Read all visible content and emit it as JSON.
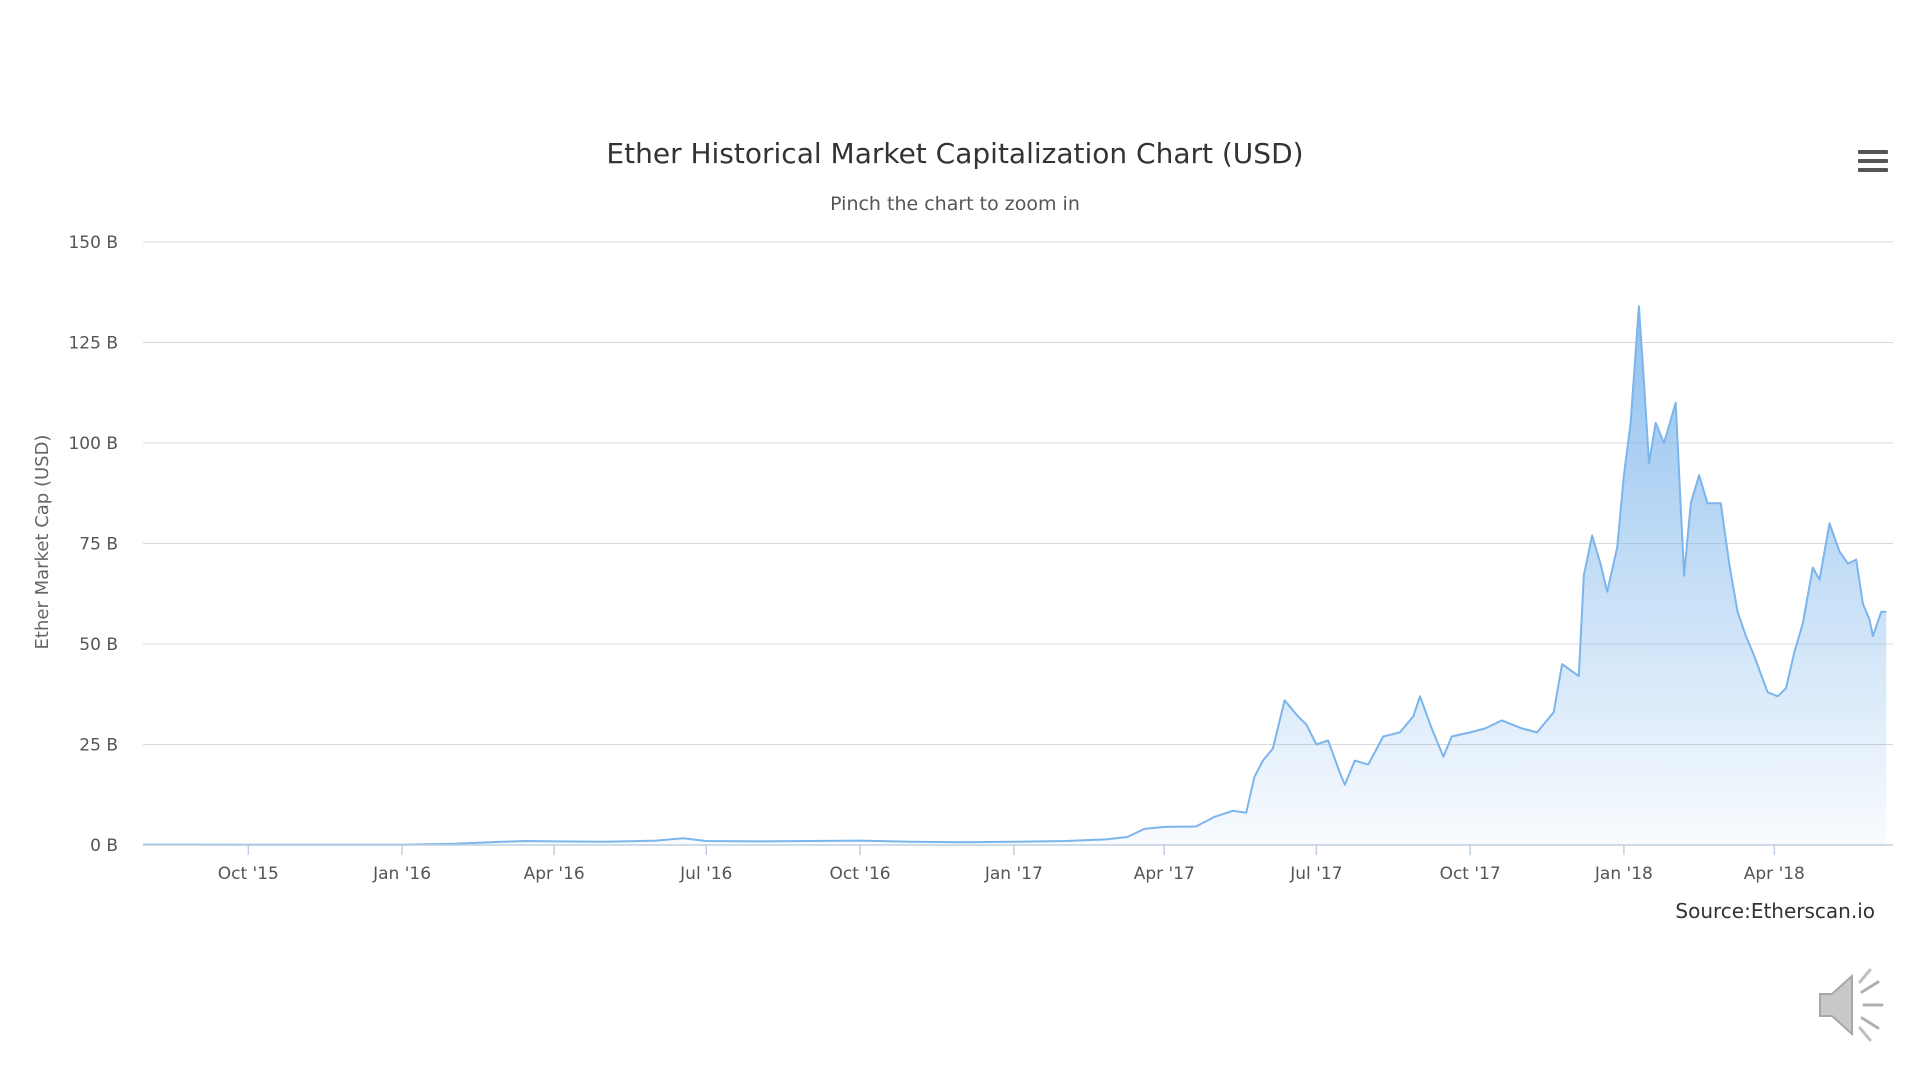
{
  "chart": {
    "title": "Ether Historical Market Capitalization Chart (USD)",
    "subtitle": "Pinch the chart to zoom in",
    "credits": "Source:Etherscan.io",
    "menu_icon": "hamburger-menu-icon",
    "sound_icon": "speaker-icon"
  },
  "chart_data": {
    "type": "area",
    "title": "Ether Historical Market Capitalization Chart (USD)",
    "subtitle": "Pinch the chart to zoom in",
    "xlabel": "",
    "ylabel": "Ether Market Cap (USD)",
    "ylim": [
      0,
      150
    ],
    "y_unit": "B",
    "y_ticks": [
      0,
      25,
      50,
      75,
      100,
      125,
      150
    ],
    "y_tick_labels": [
      "0 B",
      "25 B",
      "50 B",
      "75 B",
      "100 B",
      "125 B",
      "150 B"
    ],
    "x_range": [
      "2015-07-30",
      "2018-06-11"
    ],
    "x_ticks": [
      "2015-10-01",
      "2016-01-01",
      "2016-04-01",
      "2016-07-01",
      "2016-10-01",
      "2017-01-01",
      "2017-04-01",
      "2017-07-01",
      "2017-10-01",
      "2018-01-01",
      "2018-04-01"
    ],
    "x_tick_labels": [
      "Oct '15",
      "Jan '16",
      "Apr '16",
      "Jul '16",
      "Oct '16",
      "Jan '17",
      "Apr '17",
      "Jul '17",
      "Oct '17",
      "Jan '18",
      "Apr '18"
    ],
    "grid": true,
    "legend": "none",
    "colors": {
      "line": "#7cb5ec",
      "fill_top": "#7cb5ec",
      "fill_bottom": "#ffffff"
    },
    "series": [
      {
        "values": [
          [
            "2015-07-30",
            0.1
          ],
          [
            "2015-09-01",
            0.1
          ],
          [
            "2015-10-01",
            0.07
          ],
          [
            "2015-11-01",
            0.07
          ],
          [
            "2015-12-01",
            0.06
          ],
          [
            "2016-01-01",
            0.07
          ],
          [
            "2016-02-01",
            0.3
          ],
          [
            "2016-03-01",
            0.8
          ],
          [
            "2016-03-15",
            1.0
          ],
          [
            "2016-04-01",
            0.9
          ],
          [
            "2016-05-01",
            0.8
          ],
          [
            "2016-06-01",
            1.1
          ],
          [
            "2016-06-17",
            1.7
          ],
          [
            "2016-07-01",
            1.0
          ],
          [
            "2016-08-01",
            0.9
          ],
          [
            "2016-09-01",
            1.0
          ],
          [
            "2016-10-01",
            1.1
          ],
          [
            "2016-11-01",
            0.8
          ],
          [
            "2016-12-01",
            0.7
          ],
          [
            "2017-01-01",
            0.8
          ],
          [
            "2017-02-01",
            1.0
          ],
          [
            "2017-02-25",
            1.4
          ],
          [
            "2017-03-10",
            2.0
          ],
          [
            "2017-03-20",
            4.0
          ],
          [
            "2017-04-01",
            4.5
          ],
          [
            "2017-04-20",
            4.6
          ],
          [
            "2017-05-01",
            7.0
          ],
          [
            "2017-05-12",
            8.5
          ],
          [
            "2017-05-20",
            8.0
          ],
          [
            "2017-05-25",
            17.0
          ],
          [
            "2017-05-30",
            21.0
          ],
          [
            "2017-06-05",
            24.0
          ],
          [
            "2017-06-12",
            36.0
          ],
          [
            "2017-06-20",
            32.0
          ],
          [
            "2017-06-25",
            30.0
          ],
          [
            "2017-07-01",
            25.0
          ],
          [
            "2017-07-08",
            26.0
          ],
          [
            "2017-07-15",
            18.0
          ],
          [
            "2017-07-18",
            15.0
          ],
          [
            "2017-07-24",
            21.0
          ],
          [
            "2017-08-01",
            20.0
          ],
          [
            "2017-08-10",
            27.0
          ],
          [
            "2017-08-20",
            28.0
          ],
          [
            "2017-08-28",
            32.0
          ],
          [
            "2017-09-01",
            37.0
          ],
          [
            "2017-09-08",
            29.0
          ],
          [
            "2017-09-15",
            22.0
          ],
          [
            "2017-09-20",
            27.0
          ],
          [
            "2017-10-01",
            28.0
          ],
          [
            "2017-10-10",
            29.0
          ],
          [
            "2017-10-20",
            31.0
          ],
          [
            "2017-11-01",
            29.0
          ],
          [
            "2017-11-10",
            28.0
          ],
          [
            "2017-11-20",
            33.0
          ],
          [
            "2017-11-25",
            45.0
          ],
          [
            "2017-12-05",
            42.0
          ],
          [
            "2017-12-08",
            67.0
          ],
          [
            "2017-12-13",
            77.0
          ],
          [
            "2017-12-18",
            70.0
          ],
          [
            "2017-12-22",
            63.0
          ],
          [
            "2017-12-28",
            74.0
          ],
          [
            "2018-01-01",
            92.0
          ],
          [
            "2018-01-05",
            105.0
          ],
          [
            "2018-01-10",
            134.0
          ],
          [
            "2018-01-13",
            115.0
          ],
          [
            "2018-01-16",
            95.0
          ],
          [
            "2018-01-20",
            105.0
          ],
          [
            "2018-01-25",
            100.0
          ],
          [
            "2018-02-01",
            110.0
          ],
          [
            "2018-02-06",
            67.0
          ],
          [
            "2018-02-10",
            85.0
          ],
          [
            "2018-02-15",
            92.0
          ],
          [
            "2018-02-20",
            85.0
          ],
          [
            "2018-02-28",
            85.0
          ],
          [
            "2018-03-05",
            70.0
          ],
          [
            "2018-03-10",
            58.0
          ],
          [
            "2018-03-15",
            52.0
          ],
          [
            "2018-03-20",
            47.0
          ],
          [
            "2018-03-28",
            38.0
          ],
          [
            "2018-04-03",
            37.0
          ],
          [
            "2018-04-08",
            39.0
          ],
          [
            "2018-04-13",
            48.0
          ],
          [
            "2018-04-18",
            55.0
          ],
          [
            "2018-04-24",
            69.0
          ],
          [
            "2018-04-28",
            66.0
          ],
          [
            "2018-05-04",
            80.0
          ],
          [
            "2018-05-10",
            73.0
          ],
          [
            "2018-05-15",
            70.0
          ],
          [
            "2018-05-20",
            71.0
          ],
          [
            "2018-05-24",
            60.0
          ],
          [
            "2018-05-28",
            56.0
          ],
          [
            "2018-05-30",
            52.0
          ],
          [
            "2018-06-04",
            58.0
          ],
          [
            "2018-06-07",
            58.0
          ]
        ]
      }
    ]
  }
}
